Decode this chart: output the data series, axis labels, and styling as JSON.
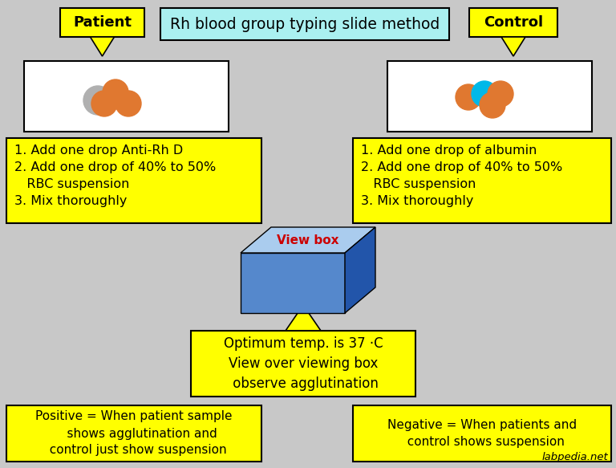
{
  "title": "Rh blood group typing slide method",
  "title_bg": "#aaf0f0",
  "background_color": "#c8c8c8",
  "yellow": "#ffff00",
  "orange": "#e07830",
  "cyan_circle": "#00b8e8",
  "gray_circle": "#b0b0b0",
  "blue_front": "#5588cc",
  "blue_top": "#aaccee",
  "blue_side": "#2255aa",
  "red_text": "#cc0000",
  "patient_label": "Patient",
  "control_label": "Control",
  "left_instructions": "1. Add one drop Anti-Rh D\n2. Add one drop of 40% to 50%\n   RBC suspension\n3. Mix thoroughly",
  "right_instructions": "1. Add one drop of albumin\n2. Add one drop of 40% to 50%\n   RBC suspension\n3. Mix thoroughly",
  "viewbox_label": "View box",
  "temp_text": "Optimum temp. is 37 ·C\nView over viewing box\n observe agglutination",
  "positive_text": "Positive = When patient sample\n    shows agglutination and\n  control just show suspension",
  "negative_text": "Negative = When patients and\n  control shows suspension",
  "watermark": "labpedia.net"
}
